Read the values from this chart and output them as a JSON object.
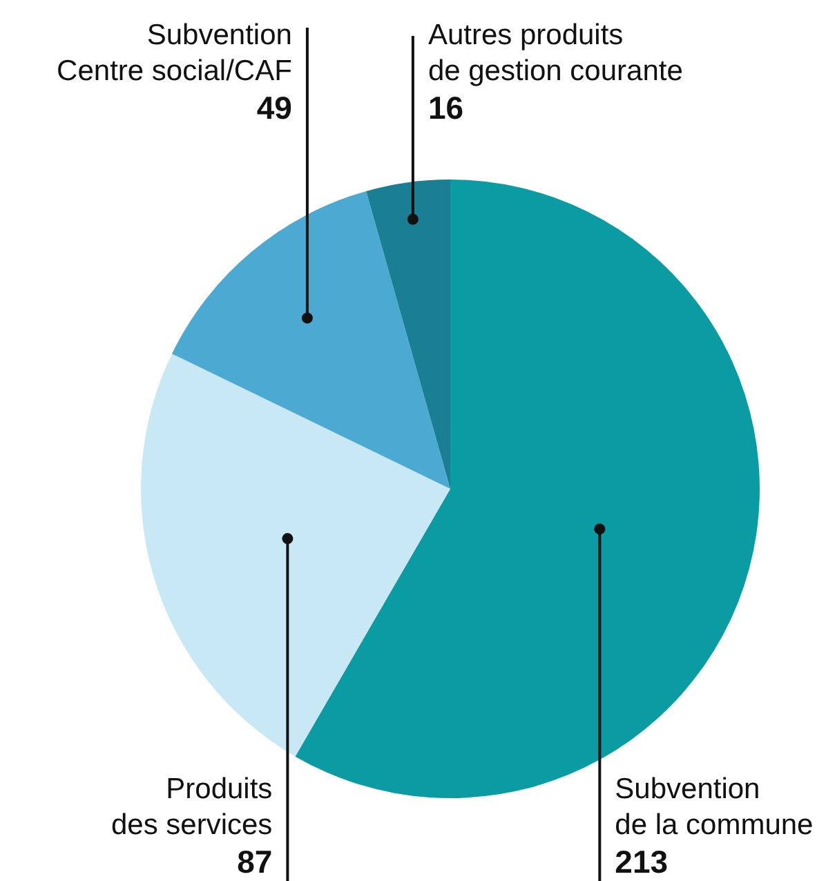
{
  "chart_data": {
    "type": "pie",
    "categories": [
      "Subvention\nde la commune",
      "Produits\ndes services",
      "Subvention\nCentre social/CAF",
      "Autres produits\nde gestion courante"
    ],
    "values": [
      213,
      87,
      49,
      16
    ],
    "colors": [
      "#0a9ba3",
      "#c8e8f6",
      "#4ba9d2",
      "#1a7f93"
    ],
    "data_labels": true
  }
}
